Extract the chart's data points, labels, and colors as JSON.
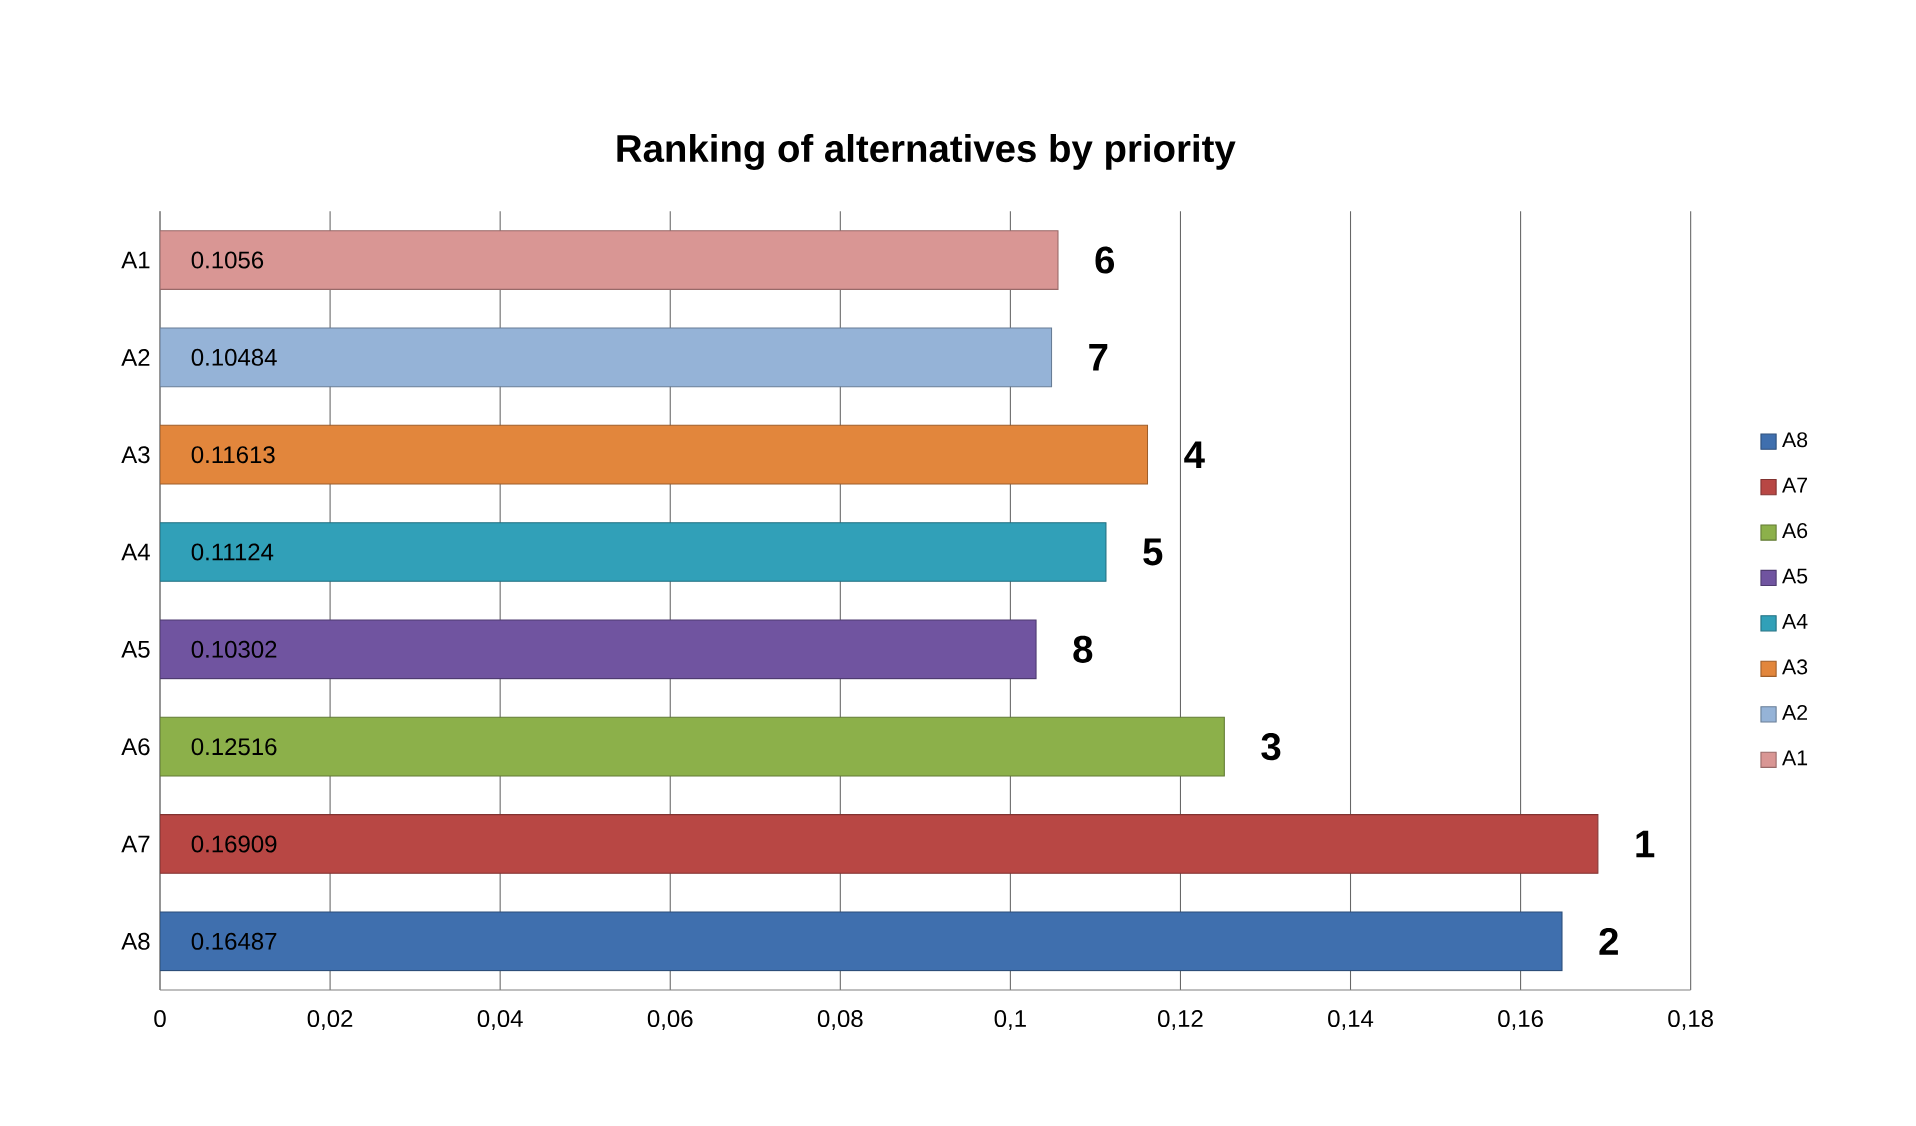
{
  "chart_data": {
    "type": "bar",
    "orientation": "horizontal",
    "title": "Ranking of alternatives by priority",
    "categories": [
      "A1",
      "A2",
      "A3",
      "A4",
      "A5",
      "A6",
      "A7",
      "A8"
    ],
    "series": [
      {
        "name": "A8",
        "color": "#3f6fae",
        "values": [
          null,
          null,
          null,
          null,
          null,
          null,
          null,
          0.16487
        ]
      },
      {
        "name": "A7",
        "color": "#b84744",
        "values": [
          null,
          null,
          null,
          null,
          null,
          null,
          0.16909,
          null
        ]
      },
      {
        "name": "A6",
        "color": "#8cb04a",
        "values": [
          null,
          null,
          null,
          null,
          null,
          0.12516,
          null,
          null
        ]
      },
      {
        "name": "A5",
        "color": "#7054a0",
        "values": [
          null,
          null,
          null,
          null,
          0.10302,
          null,
          null,
          null
        ]
      },
      {
        "name": "A4",
        "color": "#31a0b8",
        "values": [
          null,
          null,
          null,
          0.11124,
          null,
          null,
          null,
          null
        ]
      },
      {
        "name": "A3",
        "color": "#e2863c",
        "values": [
          null,
          null,
          0.11613,
          null,
          null,
          null,
          null,
          null
        ]
      },
      {
        "name": "A2",
        "color": "#95b3d7",
        "values": [
          null,
          0.10484,
          null,
          null,
          null,
          null,
          null,
          null
        ]
      },
      {
        "name": "A1",
        "color": "#d99694",
        "values": [
          0.1056,
          null,
          null,
          null,
          null,
          null,
          null,
          null
        ]
      }
    ],
    "xlim": [
      0,
      0.18
    ],
    "xticks": [
      0,
      {
        "value": 0.02,
        "label": "0,02"
      },
      {
        "value": 0.04,
        "label": "0,04"
      },
      {
        "value": 0.06,
        "label": "0,06"
      },
      {
        "value": 0.08,
        "label": "0,08"
      },
      {
        "value": 0.1,
        "label": "0,1"
      },
      {
        "value": 0.12,
        "label": "0,12"
      },
      {
        "value": 0.14,
        "label": "0,14"
      },
      {
        "value": 0.16,
        "label": "0,16"
      },
      {
        "value": 0.18,
        "label": "0,18"
      }
    ],
    "grid": "x",
    "legend": "right",
    "data_labels": true,
    "annotations": [
      {
        "text": "6",
        "x": 0.1056,
        "y": "A1"
      },
      {
        "text": "7",
        "x": 0.10484,
        "y": "A2"
      },
      {
        "text": "4",
        "x": 0.11613,
        "y": "A3"
      },
      {
        "text": "5",
        "x": 0.11124,
        "y": "A4"
      },
      {
        "text": "8",
        "x": 0.10302,
        "y": "A5"
      },
      {
        "text": "3",
        "x": 0.12516,
        "y": "A6"
      },
      {
        "text": "1",
        "x": 0.16909,
        "y": "A7"
      },
      {
        "text": "2",
        "x": 0.16487,
        "y": "A8"
      }
    ]
  }
}
